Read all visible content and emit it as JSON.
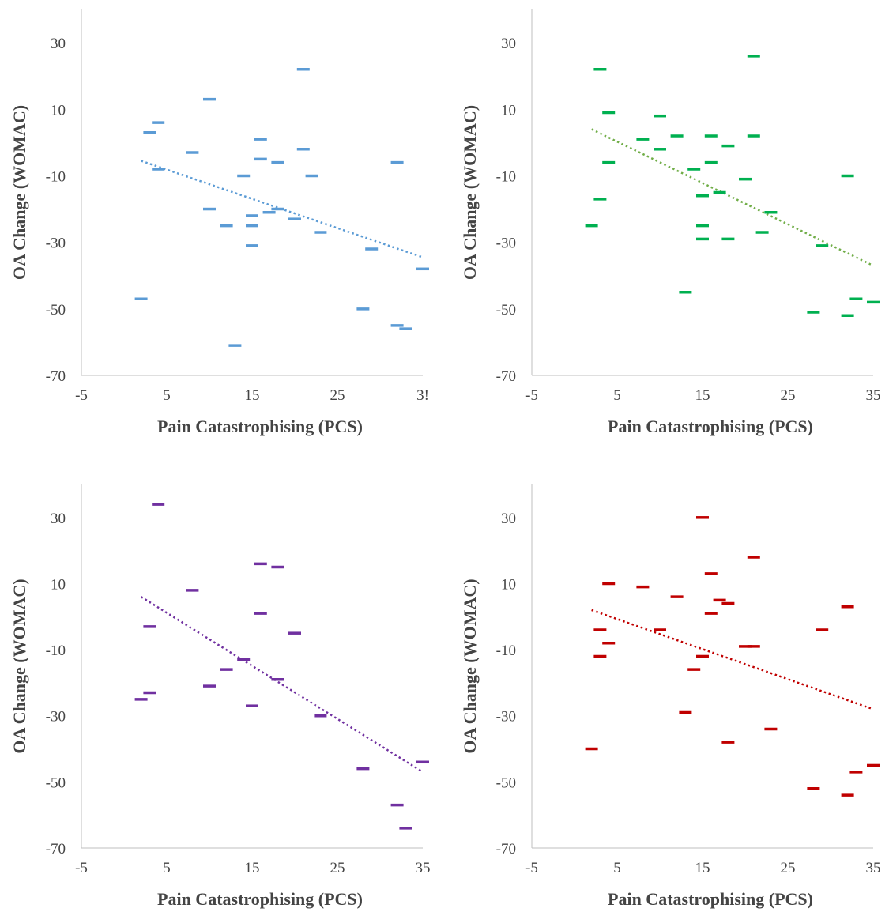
{
  "chart_data": [
    {
      "type": "scatter",
      "xlabel": "Pain Catastrophising (PCS)",
      "ylabel": "OA Change (WOMAC)",
      "xlim": [
        -5,
        35
      ],
      "ylim": [
        -70,
        40
      ],
      "x_ticks": [
        "-5",
        "5",
        "15",
        "25",
        "3!"
      ],
      "y_ticks": [
        "30",
        "10",
        "-10",
        "-30",
        "-50",
        "-70"
      ],
      "marker": "dash",
      "color": "#5b9bd5",
      "trendline": {
        "style": "dotted",
        "x": [
          2,
          35
        ],
        "y": [
          -5.5,
          -34.5
        ]
      },
      "points": [
        {
          "x": 2,
          "y": -47
        },
        {
          "x": 3,
          "y": 3
        },
        {
          "x": 4,
          "y": 6
        },
        {
          "x": 4,
          "y": -8
        },
        {
          "x": 8,
          "y": -3
        },
        {
          "x": 10,
          "y": 13
        },
        {
          "x": 10,
          "y": -20
        },
        {
          "x": 12,
          "y": -25
        },
        {
          "x": 13,
          "y": -61
        },
        {
          "x": 14,
          "y": -10
        },
        {
          "x": 15,
          "y": -22
        },
        {
          "x": 15,
          "y": -25
        },
        {
          "x": 15,
          "y": -31
        },
        {
          "x": 16,
          "y": 1
        },
        {
          "x": 16,
          "y": -5
        },
        {
          "x": 17,
          "y": -21
        },
        {
          "x": 18,
          "y": -6
        },
        {
          "x": 18,
          "y": -20
        },
        {
          "x": 20,
          "y": -23
        },
        {
          "x": 21,
          "y": 22
        },
        {
          "x": 21,
          "y": -2
        },
        {
          "x": 22,
          "y": -10
        },
        {
          "x": 23,
          "y": -27
        },
        {
          "x": 28,
          "y": -50
        },
        {
          "x": 29,
          "y": -32
        },
        {
          "x": 32,
          "y": -6
        },
        {
          "x": 32,
          "y": -55
        },
        {
          "x": 33,
          "y": -56
        },
        {
          "x": 35,
          "y": -38
        }
      ]
    },
    {
      "type": "scatter",
      "xlabel": "Pain Catastrophising (PCS)",
      "ylabel": "OA Change (WOMAC)",
      "xlim": [
        -5,
        35
      ],
      "ylim": [
        -70,
        40
      ],
      "x_ticks": [
        "-5",
        "5",
        "15",
        "25",
        "35"
      ],
      "y_ticks": [
        "30",
        "10",
        "-10",
        "-30",
        "-50",
        "-70"
      ],
      "marker": "dash",
      "color": "#00b050",
      "trendline": {
        "color": "#70ad47",
        "style": "dotted",
        "x": [
          2,
          35
        ],
        "y": [
          4,
          -37
        ]
      },
      "points": [
        {
          "x": 2,
          "y": -25
        },
        {
          "x": 3,
          "y": 22
        },
        {
          "x": 3,
          "y": -17
        },
        {
          "x": 4,
          "y": 9
        },
        {
          "x": 4,
          "y": -6
        },
        {
          "x": 8,
          "y": 1
        },
        {
          "x": 10,
          "y": 8
        },
        {
          "x": 10,
          "y": -2
        },
        {
          "x": 12,
          "y": 2
        },
        {
          "x": 13,
          "y": -45
        },
        {
          "x": 14,
          "y": -8
        },
        {
          "x": 15,
          "y": -16
        },
        {
          "x": 15,
          "y": -25
        },
        {
          "x": 15,
          "y": -29
        },
        {
          "x": 16,
          "y": 2
        },
        {
          "x": 16,
          "y": -6
        },
        {
          "x": 17,
          "y": -15
        },
        {
          "x": 18,
          "y": -1
        },
        {
          "x": 18,
          "y": -29
        },
        {
          "x": 20,
          "y": -11
        },
        {
          "x": 21,
          "y": 26
        },
        {
          "x": 21,
          "y": 2
        },
        {
          "x": 22,
          "y": -27
        },
        {
          "x": 23,
          "y": -21
        },
        {
          "x": 28,
          "y": -51
        },
        {
          "x": 29,
          "y": -31
        },
        {
          "x": 32,
          "y": -10
        },
        {
          "x": 32,
          "y": -52
        },
        {
          "x": 33,
          "y": -47
        },
        {
          "x": 35,
          "y": -48
        }
      ]
    },
    {
      "type": "scatter",
      "xlabel": "Pain Catastrophising (PCS)",
      "ylabel": "OA Change (WOMAC)",
      "xlim": [
        -5,
        35
      ],
      "ylim": [
        -70,
        40
      ],
      "x_ticks": [
        "-5",
        "5",
        "15",
        "25",
        "35"
      ],
      "y_ticks": [
        "30",
        "10",
        "-10",
        "-30",
        "-50",
        "-70"
      ],
      "marker": "dash",
      "color": "#7030a0",
      "trendline": {
        "style": "dotted",
        "x": [
          2,
          35
        ],
        "y": [
          6,
          -47
        ]
      },
      "points": [
        {
          "x": 2,
          "y": -25
        },
        {
          "x": 3,
          "y": -3
        },
        {
          "x": 3,
          "y": -23
        },
        {
          "x": 4,
          "y": 34
        },
        {
          "x": 8,
          "y": 8
        },
        {
          "x": 10,
          "y": -21
        },
        {
          "x": 12,
          "y": -16
        },
        {
          "x": 14,
          "y": -13
        },
        {
          "x": 15,
          "y": -27
        },
        {
          "x": 16,
          "y": 16
        },
        {
          "x": 16,
          "y": 1
        },
        {
          "x": 18,
          "y": 15
        },
        {
          "x": 18,
          "y": -19
        },
        {
          "x": 20,
          "y": -5
        },
        {
          "x": 23,
          "y": -30
        },
        {
          "x": 28,
          "y": -46
        },
        {
          "x": 32,
          "y": -57
        },
        {
          "x": 33,
          "y": -64
        },
        {
          "x": 35,
          "y": -44
        }
      ]
    },
    {
      "type": "scatter",
      "xlabel": "Pain Catastrophising (PCS)",
      "ylabel": "OA Change (WOMAC)",
      "xlim": [
        -5,
        35
      ],
      "ylim": [
        -70,
        40
      ],
      "x_ticks": [
        "-5",
        "5",
        "15",
        "25",
        "35"
      ],
      "y_ticks": [
        "30",
        "10",
        "-10",
        "-30",
        "-50",
        "-70"
      ],
      "marker": "dash",
      "color": "#c00000",
      "trendline": {
        "style": "dotted",
        "x": [
          2,
          35
        ],
        "y": [
          2,
          -28
        ]
      },
      "points": [
        {
          "x": 2,
          "y": -40
        },
        {
          "x": 3,
          "y": -4
        },
        {
          "x": 3,
          "y": -12
        },
        {
          "x": 4,
          "y": 10
        },
        {
          "x": 4,
          "y": -8
        },
        {
          "x": 8,
          "y": 9
        },
        {
          "x": 10,
          "y": -4
        },
        {
          "x": 12,
          "y": 6
        },
        {
          "x": 13,
          "y": -29
        },
        {
          "x": 14,
          "y": -16
        },
        {
          "x": 15,
          "y": 30
        },
        {
          "x": 15,
          "y": -12
        },
        {
          "x": 16,
          "y": 13
        },
        {
          "x": 16,
          "y": 1
        },
        {
          "x": 17,
          "y": 5
        },
        {
          "x": 18,
          "y": 4
        },
        {
          "x": 18,
          "y": -38
        },
        {
          "x": 20,
          "y": -9
        },
        {
          "x": 21,
          "y": 18
        },
        {
          "x": 21,
          "y": -9
        },
        {
          "x": 23,
          "y": -34
        },
        {
          "x": 28,
          "y": -52
        },
        {
          "x": 29,
          "y": -4
        },
        {
          "x": 32,
          "y": 3
        },
        {
          "x": 32,
          "y": -54
        },
        {
          "x": 33,
          "y": -47
        },
        {
          "x": 35,
          "y": -45
        }
      ]
    }
  ]
}
